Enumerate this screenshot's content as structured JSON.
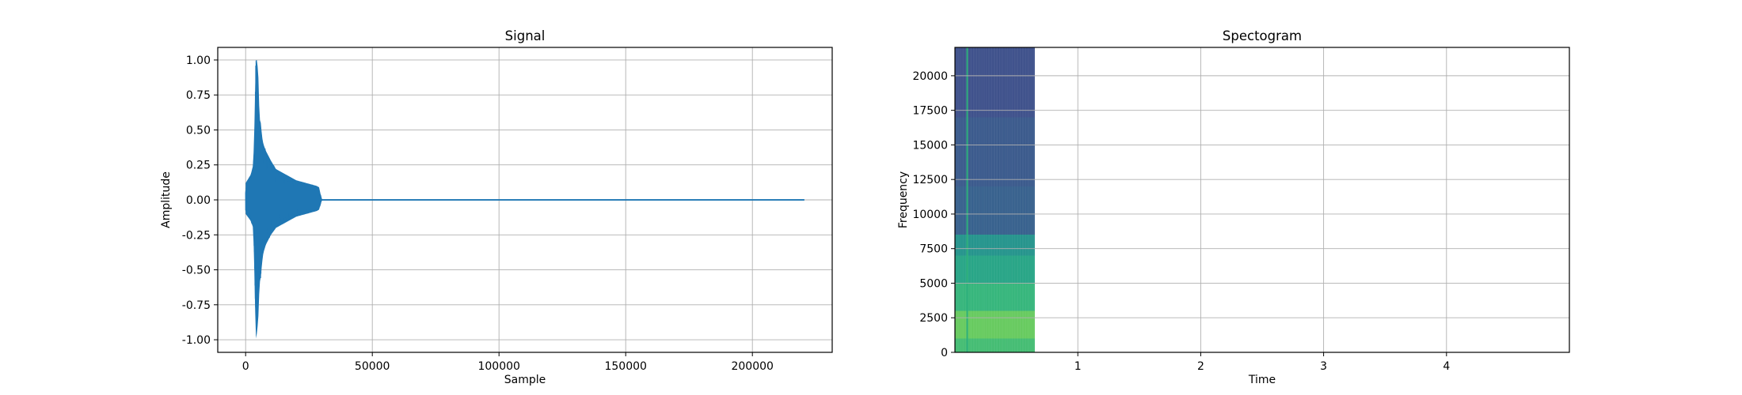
{
  "chart_data": [
    {
      "type": "line",
      "title": "Signal",
      "xlabel": "Sample",
      "ylabel": "Amplitude",
      "xlim": [
        -11000,
        231500
      ],
      "ylim": [
        -1.09,
        1.09
      ],
      "xticks": [
        0,
        50000,
        100000,
        150000,
        200000
      ],
      "xtick_labels": [
        "0",
        "50000",
        "100000",
        "150000",
        "200000"
      ],
      "yticks": [
        -1.0,
        -0.75,
        -0.5,
        -0.25,
        0.0,
        0.25,
        0.5,
        0.75,
        1.0
      ],
      "ytick_labels": [
        "-1.00",
        "-0.75",
        "-0.50",
        "-0.25",
        "0.00",
        "0.25",
        "0.50",
        "0.75",
        "1.00"
      ],
      "grid": true,
      "series": [
        {
          "color": "#1f77b4",
          "x": [
            0,
            2000,
            3000,
            3500,
            4000,
            4500,
            5000,
            5500,
            6000,
            6500,
            7000,
            8000,
            10000,
            12000,
            14000,
            16000,
            18000,
            20000,
            22000,
            24000,
            26000,
            28000,
            29000,
            30000,
            220500
          ],
          "y_max": [
            0.12,
            0.18,
            0.25,
            0.55,
            1.0,
            1.0,
            0.9,
            0.58,
            0.55,
            0.45,
            0.4,
            0.35,
            0.28,
            0.22,
            0.2,
            0.18,
            0.16,
            0.14,
            0.13,
            0.12,
            0.11,
            0.1,
            0.09,
            0.005,
            0.005
          ],
          "y_min": [
            -0.1,
            -0.15,
            -0.2,
            -0.55,
            -1.0,
            -0.95,
            -0.85,
            -0.6,
            -0.55,
            -0.45,
            -0.38,
            -0.32,
            -0.25,
            -0.2,
            -0.18,
            -0.16,
            -0.14,
            -0.12,
            -0.11,
            -0.1,
            -0.09,
            -0.08,
            -0.07,
            -0.005,
            -0.005
          ]
        }
      ]
    },
    {
      "type": "heatmap",
      "title": "Spectogram",
      "xlabel": "Time",
      "ylabel": "Frequency",
      "xlim": [
        0,
        5
      ],
      "ylim": [
        0,
        22050
      ],
      "xticks": [
        1,
        2,
        3,
        4
      ],
      "xtick_labels": [
        "1",
        "2",
        "3",
        "4"
      ],
      "yticks": [
        0,
        2500,
        5000,
        7500,
        10000,
        12500,
        15000,
        17500,
        20000
      ],
      "ytick_labels": [
        "0",
        "2500",
        "5000",
        "7500",
        "10000",
        "12500",
        "15000",
        "17500",
        "20000"
      ],
      "grid": true,
      "colormap": "viridis",
      "data_time_extent": [
        0,
        0.65
      ],
      "freq_bands": [
        {
          "from": 0,
          "to": 1000,
          "level": 0.78
        },
        {
          "from": 1000,
          "to": 3000,
          "level": 0.86
        },
        {
          "from": 3000,
          "to": 5000,
          "level": 0.74
        },
        {
          "from": 5000,
          "to": 7000,
          "level": 0.66
        },
        {
          "from": 7000,
          "to": 8500,
          "level": 0.58
        },
        {
          "from": 8500,
          "to": 12000,
          "level": 0.34
        },
        {
          "from": 12000,
          "to": 17000,
          "level": 0.31
        },
        {
          "from": 17000,
          "to": 22050,
          "level": 0.27
        }
      ],
      "onset_time": 0.1
    }
  ]
}
